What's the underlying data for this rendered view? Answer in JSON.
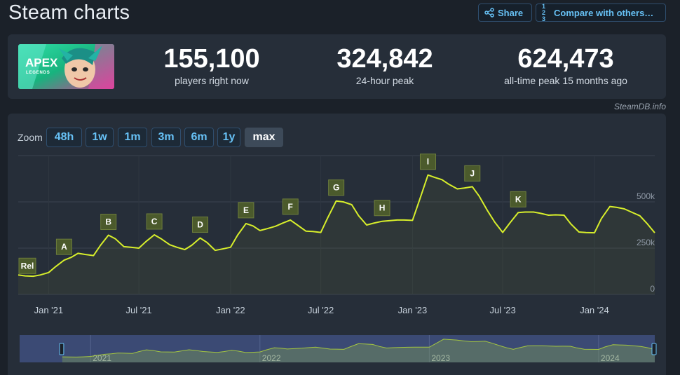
{
  "title": "Steam charts",
  "header": {
    "share_label": "Share",
    "compare_label": "Compare with others…",
    "compare_icon_text": "1 2 3"
  },
  "game": {
    "logo_text": "APEX",
    "logo_subtext": "LEGENDS"
  },
  "stats": {
    "current_value": "155,100",
    "current_label": "players right now",
    "peak24_value": "324,842",
    "peak24_label": "24-hour peak",
    "alltime_value": "624,473",
    "alltime_label": "all-time peak 15 months ago"
  },
  "source_label": "SteamDB.info",
  "zoom": {
    "label": "Zoom",
    "options": [
      "48h",
      "1w",
      "1m",
      "3m",
      "6m",
      "1y",
      "max"
    ],
    "active": "max"
  },
  "colors": {
    "line": "#d7ee2b",
    "accent": "#67c1f5",
    "navigator_fill": "#3b4a74",
    "marker_bg": "#4b5a2c"
  },
  "chart_data": {
    "type": "line",
    "series": [
      {
        "x": [
          "2020-11-01",
          "2020-11-15",
          "2020-12-01",
          "2020-12-15",
          "2021-01-01",
          "2021-01-15",
          "2021-02-01",
          "2021-02-15",
          "2021-03-01",
          "2021-03-15",
          "2021-04-01",
          "2021-04-15",
          "2021-05-01",
          "2021-05-15",
          "2021-06-01",
          "2021-06-15",
          "2021-07-01",
          "2021-07-15",
          "2021-08-01",
          "2021-08-15",
          "2021-09-01",
          "2021-09-15",
          "2021-10-01",
          "2021-10-15",
          "2021-11-01",
          "2021-11-15",
          "2021-12-01",
          "2021-12-15",
          "2022-01-01",
          "2022-01-15",
          "2022-02-01",
          "2022-02-15",
          "2022-03-01",
          "2022-03-15",
          "2022-04-01",
          "2022-04-15",
          "2022-05-01",
          "2022-05-15",
          "2022-06-01",
          "2022-06-15",
          "2022-07-01",
          "2022-07-15",
          "2022-08-01",
          "2022-08-15",
          "2022-09-01",
          "2022-09-15",
          "2022-10-01",
          "2022-10-15",
          "2022-11-01",
          "2022-11-15",
          "2022-12-01",
          "2022-12-15",
          "2023-01-01",
          "2023-01-15",
          "2023-02-01",
          "2023-02-15",
          "2023-03-01",
          "2023-03-15",
          "2023-04-01",
          "2023-04-15",
          "2023-05-01",
          "2023-05-15",
          "2023-06-01",
          "2023-06-15",
          "2023-07-01",
          "2023-07-15",
          "2023-08-01",
          "2023-08-15",
          "2023-09-01",
          "2023-09-15",
          "2023-10-01",
          "2023-10-15",
          "2023-11-01",
          "2023-11-15",
          "2023-12-01",
          "2023-12-15",
          "2024-01-01",
          "2024-01-15",
          "2024-02-01",
          "2024-02-15",
          "2024-03-01",
          "2024-03-15",
          "2024-04-01",
          "2024-04-15",
          "2024-05-01"
        ],
        "values": [
          105000,
          100000,
          98000,
          105000,
          118000,
          150000,
          185000,
          200000,
          222000,
          216000,
          210000,
          265000,
          320000,
          300000,
          258000,
          255000,
          250000,
          285000,
          322000,
          300000,
          268000,
          255000,
          242000,
          265000,
          305000,
          280000,
          238000,
          245000,
          255000,
          320000,
          383000,
          370000,
          345000,
          355000,
          368000,
          385000,
          402000,
          375000,
          342000,
          340000,
          335000,
          415000,
          505000,
          500000,
          485000,
          425000,
          375000,
          385000,
          395000,
          398000,
          402000,
          402000,
          400000,
          510000,
          645000,
          632000,
          620000,
          595000,
          570000,
          575000,
          582000,
          530000,
          450000,
          390000,
          335000,
          385000,
          442000,
          445000,
          445000,
          438000,
          428000,
          430000,
          428000,
          380000,
          337000,
          334000,
          333000,
          410000,
          475000,
          470000,
          462000,
          445000,
          425000,
          385000,
          333000
        ],
        "values_are_estimated_from_chart": true
      }
    ],
    "x_tick_labels": [
      "Jan '21",
      "Jul '21",
      "Jan '22",
      "Jul '22",
      "Jan '23",
      "Jul '23",
      "Jan '24"
    ],
    "x_ticks": [
      "2021-01-01",
      "2021-07-01",
      "2022-01-01",
      "2022-07-01",
      "2023-01-01",
      "2023-07-01",
      "2024-01-01"
    ],
    "y_tick_labels": [
      "0",
      "250k",
      "500k"
    ],
    "y_ticks": [
      0,
      250000,
      500000
    ],
    "ylim": [
      0,
      750000
    ],
    "xlim": [
      "2020-11-01",
      "2024-05-01"
    ],
    "grid": true,
    "markers": [
      {
        "label": "Rel",
        "x": "2020-11-01"
      },
      {
        "label": "A",
        "x": "2021-02-01"
      },
      {
        "label": "B",
        "x": "2021-05-01"
      },
      {
        "label": "C",
        "x": "2021-08-01"
      },
      {
        "label": "D",
        "x": "2021-11-01"
      },
      {
        "label": "E",
        "x": "2022-02-01"
      },
      {
        "label": "F",
        "x": "2022-05-01"
      },
      {
        "label": "G",
        "x": "2022-08-01"
      },
      {
        "label": "H",
        "x": "2022-11-01"
      },
      {
        "label": "I",
        "x": "2023-02-01"
      },
      {
        "label": "J",
        "x": "2023-05-01"
      },
      {
        "label": "K",
        "x": "2023-08-01"
      }
    ],
    "navigator": {
      "year_labels": [
        "2021",
        "2022",
        "2023",
        "2024"
      ],
      "year_ticks": [
        "2021-01-01",
        "2022-01-01",
        "2023-01-01",
        "2024-01-01"
      ],
      "xlim": [
        "2020-08-01",
        "2024-05-01"
      ]
    }
  }
}
